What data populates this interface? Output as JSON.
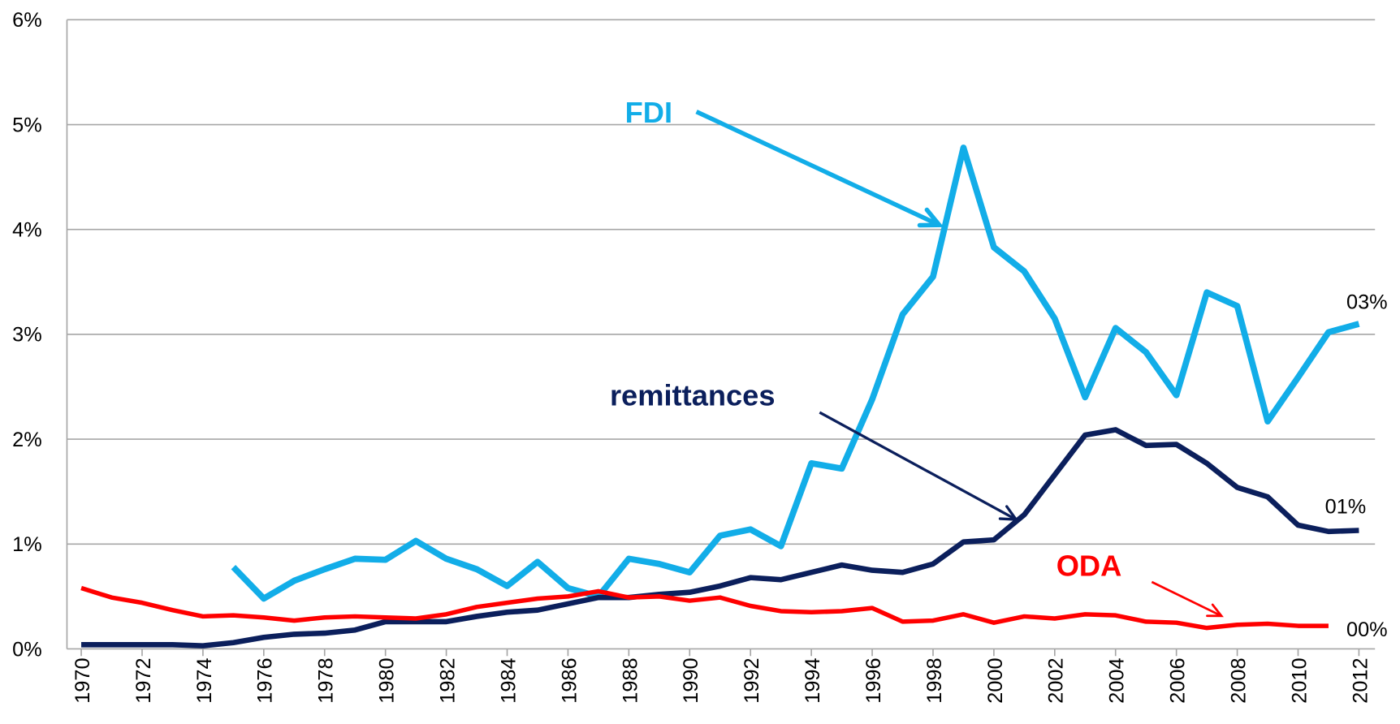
{
  "chart_data": {
    "type": "line",
    "x": [
      1970,
      1971,
      1972,
      1973,
      1974,
      1975,
      1976,
      1977,
      1978,
      1979,
      1980,
      1981,
      1982,
      1983,
      1984,
      1985,
      1986,
      1987,
      1988,
      1989,
      1990,
      1991,
      1992,
      1993,
      1994,
      1995,
      1996,
      1997,
      1998,
      1999,
      2000,
      2001,
      2002,
      2003,
      2004,
      2005,
      2006,
      2007,
      2008,
      2009,
      2010,
      2011,
      2012
    ],
    "xlim": [
      1970,
      2012
    ],
    "xticks": [
      1970,
      1972,
      1974,
      1976,
      1978,
      1980,
      1982,
      1984,
      1986,
      1988,
      1990,
      1992,
      1994,
      1996,
      1998,
      2000,
      2002,
      2004,
      2006,
      2008,
      2010,
      2012
    ],
    "ylim": [
      0,
      6
    ],
    "yticks": [
      {
        "value": 0,
        "label": "0%"
      },
      {
        "value": 1,
        "label": "1%"
      },
      {
        "value": 2,
        "label": "2%"
      },
      {
        "value": 3,
        "label": "3%"
      },
      {
        "value": 4,
        "label": "4%"
      },
      {
        "value": 5,
        "label": "5%"
      },
      {
        "value": 6,
        "label": "6%"
      }
    ],
    "grid": true,
    "series": [
      {
        "name": "FDI",
        "color": "#12ade8",
        "values": [
          null,
          null,
          null,
          null,
          null,
          0.78,
          0.48,
          0.65,
          0.76,
          0.86,
          0.85,
          1.03,
          0.86,
          0.76,
          0.6,
          0.83,
          0.58,
          0.5,
          0.86,
          0.81,
          0.73,
          1.08,
          1.14,
          0.98,
          1.77,
          1.72,
          2.38,
          3.19,
          3.55,
          4.78,
          3.83,
          3.6,
          3.15,
          2.4,
          3.06,
          2.83,
          2.42,
          3.4,
          3.27,
          2.17,
          2.59,
          3.02,
          3.1
        ],
        "value_labels": [
          null,
          null,
          null,
          null,
          null,
          null,
          null,
          null,
          null,
          null,
          null,
          null,
          null,
          null,
          null,
          null,
          null,
          null,
          null,
          null,
          null,
          null,
          null,
          null,
          null,
          null,
          null,
          null,
          null,
          null,
          null,
          null,
          null,
          null,
          null,
          null,
          null,
          null,
          null,
          null,
          null,
          null,
          "03%"
        ]
      },
      {
        "name": "remittances",
        "color": "#0b1f5c",
        "values": [
          0.04,
          0.04,
          0.04,
          0.04,
          0.03,
          0.06,
          0.11,
          0.14,
          0.15,
          0.18,
          0.26,
          0.26,
          0.26,
          0.31,
          0.35,
          0.37,
          0.43,
          0.49,
          0.49,
          0.52,
          0.54,
          0.6,
          0.68,
          0.66,
          0.73,
          0.8,
          0.75,
          0.73,
          0.81,
          1.02,
          1.04,
          1.28,
          1.66,
          2.04,
          2.09,
          1.94,
          1.95,
          1.77,
          1.54,
          1.45,
          1.18,
          1.12,
          1.13
        ],
        "value_labels": [
          null,
          null,
          null,
          null,
          null,
          null,
          null,
          null,
          null,
          null,
          null,
          null,
          null,
          null,
          null,
          null,
          null,
          null,
          null,
          null,
          null,
          null,
          null,
          null,
          null,
          null,
          null,
          null,
          null,
          null,
          null,
          null,
          null,
          null,
          null,
          null,
          null,
          null,
          null,
          null,
          null,
          null,
          "01%"
        ]
      },
      {
        "name": "ODA",
        "color": "#ff0000",
        "values": [
          0.58,
          0.49,
          0.44,
          0.37,
          0.31,
          0.32,
          0.3,
          0.27,
          0.3,
          0.31,
          0.3,
          0.29,
          0.33,
          0.4,
          0.44,
          0.48,
          0.5,
          0.55,
          0.49,
          0.5,
          0.46,
          0.49,
          0.41,
          0.36,
          0.35,
          0.36,
          0.39,
          0.26,
          0.27,
          0.33,
          0.25,
          0.31,
          0.29,
          0.33,
          0.32,
          0.26,
          0.25,
          0.2,
          0.23,
          0.24,
          0.22,
          0.22,
          null
        ],
        "value_labels": [
          null,
          null,
          null,
          null,
          null,
          null,
          null,
          null,
          null,
          null,
          null,
          null,
          null,
          null,
          null,
          null,
          null,
          null,
          null,
          null,
          null,
          null,
          null,
          null,
          null,
          null,
          null,
          null,
          null,
          null,
          null,
          null,
          null,
          null,
          null,
          null,
          null,
          null,
          null,
          null,
          null,
          "00%",
          null
        ]
      }
    ]
  }
}
